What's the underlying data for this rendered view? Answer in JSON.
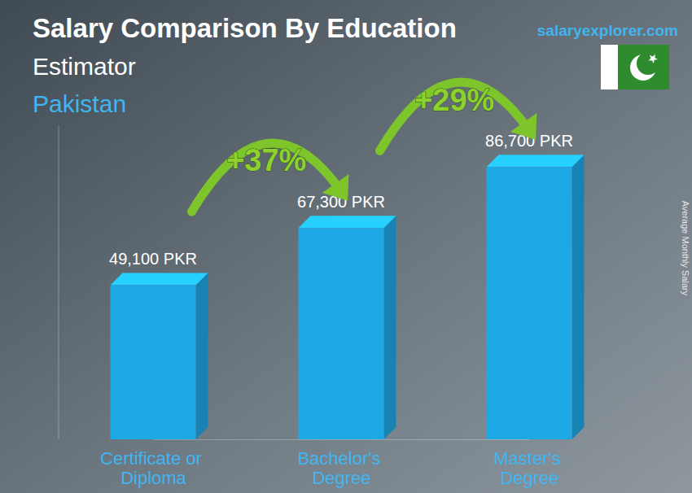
{
  "chart_data": {
    "type": "bar",
    "title": "Salary Comparison By Education",
    "subtitle": "Estimator",
    "country": "Pakistan",
    "source": "salaryexplorer.com",
    "ylabel": "Average Monthly Salary",
    "categories": [
      "Certificate or Diploma",
      "Bachelor's Degree",
      "Master's Degree"
    ],
    "values": [
      49100,
      67300,
      86700
    ],
    "value_labels": [
      "49,100 PKR",
      "67,300 PKR",
      "86,700 PKR"
    ],
    "color": "#1fa8e6",
    "data_labels": true,
    "tick_labels": "x",
    "ylim": [
      0,
      100000
    ],
    "annotations": [
      "+37%",
      "+29%"
    ]
  }
}
